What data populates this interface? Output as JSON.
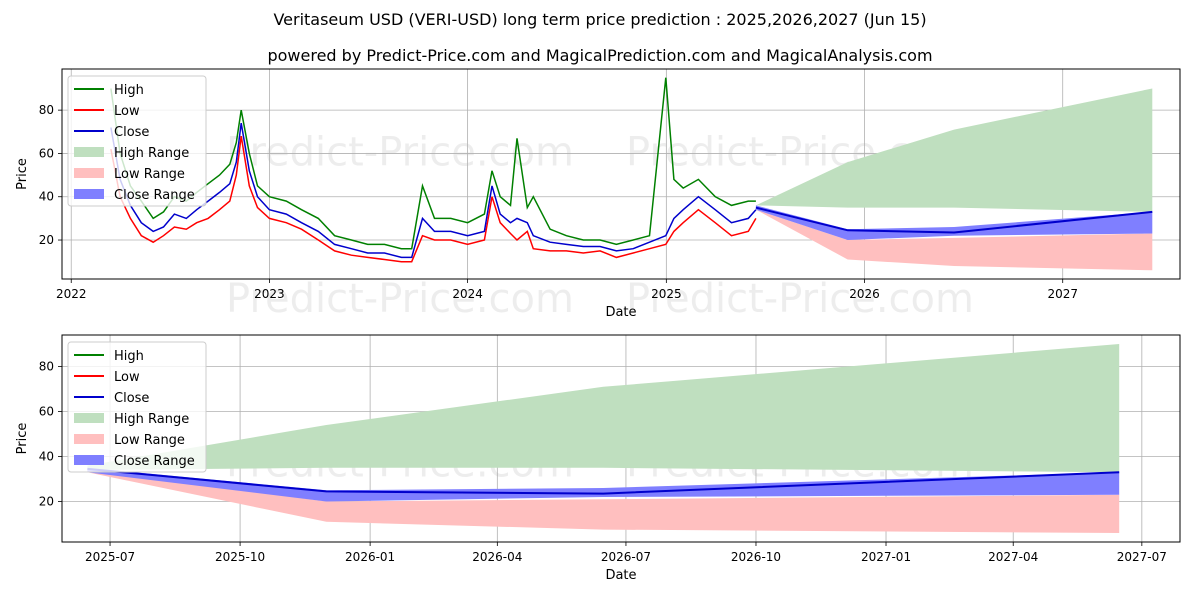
{
  "title": "Veritaseum USD (VERI-USD) long term price prediction : 2025,2026,2027 (Jun 15)",
  "subtitle": "powered by Predict-Price.com and MagicalPrediction.com and MagicalAnalysis.com",
  "watermark": "Predict-Price.com",
  "colors": {
    "high": "#008000",
    "low": "#ff0000",
    "close": "#0000cc",
    "high_range": "#bfdfbf",
    "low_range": "#ffbfbf",
    "close_range": "#7f7fff",
    "grid": "#b0b0b0"
  },
  "legend": [
    "High",
    "Low",
    "Close",
    "High Range",
    "Low Range",
    "Close Range"
  ],
  "chart_data": [
    {
      "type": "line",
      "name": "overview",
      "xlabel": "Date",
      "ylabel": "Price",
      "xticks": [
        "2022",
        "2023",
        "2024",
        "2025",
        "2026",
        "2027"
      ],
      "yticks": [
        20,
        40,
        60,
        80
      ],
      "xlim": [
        "2021-12-15",
        "2027-08-05"
      ],
      "ylim": [
        2,
        99
      ],
      "grid": true,
      "legend_position": "top-left",
      "history": {
        "dates": [
          "2022-03-15",
          "2022-04-01",
          "2022-04-20",
          "2022-05-10",
          "2022-06-01",
          "2022-06-20",
          "2022-07-10",
          "2022-08-01",
          "2022-08-20",
          "2022-09-10",
          "2022-10-01",
          "2022-10-20",
          "2022-11-01",
          "2022-11-10",
          "2022-11-25",
          "2022-12-10",
          "2023-01-01",
          "2023-02-01",
          "2023-03-01",
          "2023-04-01",
          "2023-05-01",
          "2023-06-01",
          "2023-07-01",
          "2023-08-01",
          "2023-09-01",
          "2023-09-20",
          "2023-10-10",
          "2023-11-01",
          "2023-12-01",
          "2024-01-01",
          "2024-02-01",
          "2024-02-15",
          "2024-03-01",
          "2024-03-20",
          "2024-04-01",
          "2024-04-20",
          "2024-05-01",
          "2024-06-01",
          "2024-07-01",
          "2024-08-01",
          "2024-09-01",
          "2024-10-01",
          "2024-11-01",
          "2024-12-01",
          "2024-12-31",
          "2025-01-15",
          "2025-02-01",
          "2025-03-01",
          "2025-04-01",
          "2025-05-01",
          "2025-06-01",
          "2025-06-15"
        ],
        "high": [
          90,
          60,
          45,
          38,
          30,
          33,
          40,
          38,
          42,
          46,
          50,
          55,
          65,
          80,
          60,
          45,
          40,
          38,
          34,
          30,
          22,
          20,
          18,
          18,
          16,
          16,
          45,
          30,
          30,
          28,
          32,
          52,
          40,
          36,
          67,
          35,
          40,
          25,
          22,
          20,
          20,
          18,
          20,
          22,
          95,
          48,
          44,
          48,
          40,
          36,
          38,
          38
        ],
        "low": [
          62,
          40,
          30,
          22,
          19,
          22,
          26,
          25,
          28,
          30,
          34,
          38,
          50,
          68,
          45,
          35,
          30,
          28,
          25,
          20,
          15,
          13,
          12,
          11,
          10,
          10,
          22,
          20,
          20,
          18,
          20,
          40,
          28,
          23,
          20,
          24,
          16,
          15,
          15,
          14,
          15,
          12,
          14,
          16,
          18,
          24,
          28,
          34,
          28,
          22,
          24,
          30
        ],
        "close": [
          72,
          48,
          36,
          28,
          24,
          26,
          32,
          30,
          34,
          38,
          42,
          46,
          56,
          74,
          52,
          40,
          34,
          32,
          28,
          24,
          18,
          16,
          14,
          14,
          12,
          12,
          30,
          24,
          24,
          22,
          24,
          45,
          32,
          28,
          30,
          28,
          22,
          19,
          18,
          17,
          17,
          15,
          16,
          19,
          22,
          30,
          34,
          40,
          34,
          28,
          30,
          34
        ]
      },
      "forecast": {
        "dates": [
          "2025-06-15",
          "2025-12-01",
          "2026-06-15",
          "2027-06-15"
        ],
        "high_range": [
          [
            36,
            36
          ],
          [
            35,
            56
          ],
          [
            35,
            71
          ],
          [
            33,
            90
          ]
        ],
        "low_range": [
          [
            34,
            34
          ],
          [
            11,
            20
          ],
          [
            8,
            21
          ],
          [
            6,
            23
          ]
        ],
        "close_range": [
          [
            34,
            36
          ],
          [
            20,
            25
          ],
          [
            22,
            26
          ],
          [
            23,
            33
          ]
        ],
        "close": [
          35,
          24.5,
          23.5,
          33
        ]
      }
    },
    {
      "type": "line",
      "name": "forecast-detail",
      "xlabel": "Date",
      "ylabel": "Price",
      "xticks": [
        "2025-07",
        "2025-10",
        "2026-01",
        "2026-04",
        "2026-07",
        "2026-10",
        "2027-01",
        "2027-04",
        "2027-07"
      ],
      "yticks": [
        20,
        40,
        60,
        80
      ],
      "xlim": [
        "2025-05-28",
        "2027-07-28"
      ],
      "ylim": [
        2,
        94
      ],
      "grid": true,
      "legend_position": "top-left",
      "forecast": {
        "dates": [
          "2025-06-15",
          "2025-12-01",
          "2026-06-15",
          "2027-06-15"
        ],
        "high_range": [
          [
            34,
            36
          ],
          [
            35,
            54
          ],
          [
            35,
            71
          ],
          [
            33,
            90
          ]
        ],
        "low_range": [
          [
            33,
            34
          ],
          [
            11,
            20
          ],
          [
            7.5,
            21
          ],
          [
            6,
            23
          ]
        ],
        "close_range": [
          [
            33,
            35
          ],
          [
            20,
            25
          ],
          [
            22,
            26
          ],
          [
            23,
            33
          ]
        ],
        "close": [
          34.5,
          24.5,
          23.5,
          33
        ]
      }
    }
  ]
}
